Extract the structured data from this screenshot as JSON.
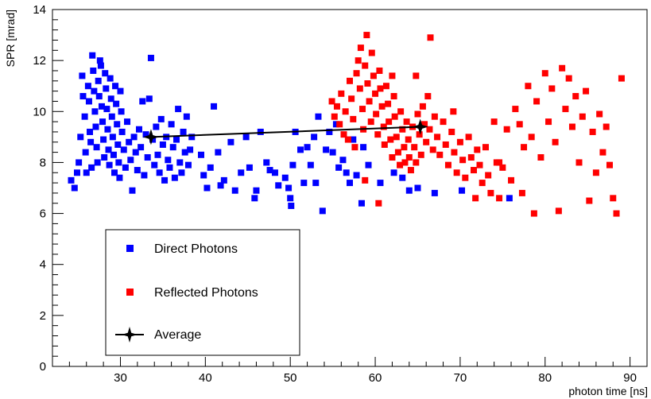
{
  "chart_data": {
    "type": "scatter",
    "xlabel": "photon time [ns]",
    "ylabel": "SPR [mrad]",
    "xlim": [
      22,
      92
    ],
    "ylim": [
      0,
      14
    ],
    "x_ticks": [
      30,
      40,
      50,
      60,
      70,
      80,
      90
    ],
    "y_ticks": [
      0,
      2,
      4,
      6,
      8,
      10,
      12,
      14
    ],
    "grid": false,
    "legend_placement": "bottom-left",
    "series": [
      {
        "name": "Direct Photons",
        "marker": "square",
        "color": "#0000ff",
        "points": [
          [
            24.2,
            7.3
          ],
          [
            24.6,
            7.0
          ],
          [
            24.9,
            7.6
          ],
          [
            25.1,
            8.0
          ],
          [
            25.3,
            9.0
          ],
          [
            25.5,
            11.4
          ],
          [
            25.6,
            10.6
          ],
          [
            25.8,
            9.8
          ],
          [
            25.9,
            8.4
          ],
          [
            26.0,
            7.6
          ],
          [
            26.2,
            11.0
          ],
          [
            26.3,
            10.4
          ],
          [
            26.4,
            9.2
          ],
          [
            26.5,
            8.8
          ],
          [
            26.6,
            7.8
          ],
          [
            26.7,
            12.2
          ],
          [
            26.8,
            11.6
          ],
          [
            26.9,
            10.8
          ],
          [
            27.0,
            10.0
          ],
          [
            27.1,
            9.4
          ],
          [
            27.2,
            8.6
          ],
          [
            27.3,
            8.0
          ],
          [
            27.4,
            11.2
          ],
          [
            27.5,
            10.6
          ],
          [
            27.6,
            12.0
          ],
          [
            27.7,
            11.8
          ],
          [
            27.8,
            10.2
          ],
          [
            27.9,
            9.6
          ],
          [
            28.0,
            8.9
          ],
          [
            28.1,
            8.2
          ],
          [
            28.2,
            11.5
          ],
          [
            28.3,
            10.9
          ],
          [
            28.4,
            10.1
          ],
          [
            28.5,
            9.3
          ],
          [
            28.6,
            8.5
          ],
          [
            28.7,
            7.9
          ],
          [
            28.8,
            11.3
          ],
          [
            28.9,
            10.5
          ],
          [
            29.0,
            9.8
          ],
          [
            29.1,
            9.0
          ],
          [
            29.2,
            8.3
          ],
          [
            29.3,
            7.6
          ],
          [
            29.4,
            11.0
          ],
          [
            29.5,
            10.3
          ],
          [
            29.6,
            9.5
          ],
          [
            29.7,
            8.7
          ],
          [
            29.8,
            8.0
          ],
          [
            29.9,
            7.4
          ],
          [
            30.0,
            10.8
          ],
          [
            30.1,
            10.0
          ],
          [
            30.2,
            9.2
          ],
          [
            30.4,
            8.5
          ],
          [
            30.6,
            7.8
          ],
          [
            30.8,
            9.6
          ],
          [
            31.0,
            8.8
          ],
          [
            31.2,
            8.1
          ],
          [
            31.4,
            6.9
          ],
          [
            31.6,
            9.0
          ],
          [
            31.8,
            8.4
          ],
          [
            32.0,
            7.7
          ],
          [
            32.2,
            9.3
          ],
          [
            32.4,
            8.6
          ],
          [
            32.6,
            10.4
          ],
          [
            32.8,
            7.5
          ],
          [
            33.0,
            9.1
          ],
          [
            33.2,
            8.2
          ],
          [
            33.4,
            10.5
          ],
          [
            33.6,
            12.1
          ],
          [
            33.8,
            8.9
          ],
          [
            34.0,
            7.9
          ],
          [
            34.2,
            9.4
          ],
          [
            34.4,
            8.3
          ],
          [
            34.6,
            7.6
          ],
          [
            34.8,
            9.7
          ],
          [
            35.0,
            8.7
          ],
          [
            35.2,
            7.3
          ],
          [
            35.4,
            9.0
          ],
          [
            35.6,
            8.1
          ],
          [
            35.8,
            7.8
          ],
          [
            36.0,
            9.5
          ],
          [
            36.2,
            8.6
          ],
          [
            36.4,
            7.4
          ],
          [
            36.6,
            8.9
          ],
          [
            36.8,
            10.1
          ],
          [
            37.0,
            8.0
          ],
          [
            37.2,
            7.6
          ],
          [
            37.4,
            9.2
          ],
          [
            37.6,
            8.4
          ],
          [
            37.8,
            9.8
          ],
          [
            38.0,
            7.9
          ],
          [
            38.2,
            8.5
          ],
          [
            38.4,
            9.0
          ],
          [
            39.5,
            8.3
          ],
          [
            39.8,
            7.5
          ],
          [
            40.2,
            7.0
          ],
          [
            40.6,
            7.8
          ],
          [
            41.0,
            10.2
          ],
          [
            41.5,
            8.4
          ],
          [
            41.8,
            7.1
          ],
          [
            42.2,
            7.3
          ],
          [
            43.0,
            8.8
          ],
          [
            43.5,
            6.9
          ],
          [
            44.2,
            7.6
          ],
          [
            44.8,
            9.0
          ],
          [
            45.2,
            7.8
          ],
          [
            45.8,
            6.6
          ],
          [
            46.0,
            6.9
          ],
          [
            46.5,
            9.2
          ],
          [
            47.2,
            8.0
          ],
          [
            47.6,
            7.7
          ],
          [
            48.2,
            7.6
          ],
          [
            48.6,
            7.1
          ],
          [
            49.4,
            7.4
          ],
          [
            49.8,
            7.0
          ],
          [
            50.0,
            6.6
          ],
          [
            50.1,
            6.3
          ],
          [
            50.3,
            7.9
          ],
          [
            50.6,
            9.2
          ],
          [
            51.2,
            8.5
          ],
          [
            51.6,
            7.2
          ],
          [
            52.0,
            8.6
          ],
          [
            52.4,
            7.9
          ],
          [
            52.8,
            9.0
          ],
          [
            53.0,
            7.2
          ],
          [
            53.3,
            9.8
          ],
          [
            53.8,
            6.1
          ],
          [
            54.2,
            8.5
          ],
          [
            54.6,
            9.2
          ],
          [
            55.0,
            8.4
          ],
          [
            55.4,
            9.5
          ],
          [
            55.7,
            7.8
          ],
          [
            56.2,
            8.1
          ],
          [
            56.6,
            7.6
          ],
          [
            57.0,
            7.2
          ],
          [
            57.4,
            8.9
          ],
          [
            57.8,
            7.5
          ],
          [
            58.4,
            6.4
          ],
          [
            58.6,
            8.6
          ],
          [
            59.2,
            7.9
          ],
          [
            60.6,
            7.2
          ],
          [
            62.2,
            7.6
          ],
          [
            63.2,
            7.4
          ],
          [
            64.0,
            6.9
          ],
          [
            65.0,
            7.0
          ],
          [
            67.0,
            6.8
          ],
          [
            70.2,
            6.9
          ],
          [
            75.8,
            6.6
          ]
        ]
      },
      {
        "name": "Reflected Photons",
        "marker": "square",
        "color": "#ff0000",
        "points": [
          [
            54.9,
            10.4
          ],
          [
            55.2,
            9.8
          ],
          [
            55.5,
            10.2
          ],
          [
            55.8,
            9.5
          ],
          [
            56.0,
            10.7
          ],
          [
            56.3,
            9.1
          ],
          [
            56.5,
            10.0
          ],
          [
            56.8,
            8.9
          ],
          [
            57.0,
            11.2
          ],
          [
            57.2,
            10.5
          ],
          [
            57.4,
            9.7
          ],
          [
            57.6,
            8.6
          ],
          [
            57.8,
            11.5
          ],
          [
            58.0,
            12.0
          ],
          [
            58.2,
            10.9
          ],
          [
            58.3,
            12.5
          ],
          [
            58.5,
            10.1
          ],
          [
            58.6,
            9.3
          ],
          [
            58.8,
            11.8
          ],
          [
            59.0,
            13.0
          ],
          [
            59.1,
            11.1
          ],
          [
            59.3,
            10.4
          ],
          [
            59.5,
            9.6
          ],
          [
            59.6,
            12.3
          ],
          [
            59.8,
            11.4
          ],
          [
            60.0,
            10.7
          ],
          [
            60.1,
            9.9
          ],
          [
            60.3,
            9.1
          ],
          [
            60.5,
            11.6
          ],
          [
            60.6,
            10.9
          ],
          [
            60.8,
            10.2
          ],
          [
            61.0,
            9.4
          ],
          [
            61.1,
            8.7
          ],
          [
            61.3,
            11.0
          ],
          [
            61.5,
            10.3
          ],
          [
            61.6,
            9.6
          ],
          [
            61.8,
            8.9
          ],
          [
            62.0,
            8.2
          ],
          [
            62.2,
            10.6
          ],
          [
            62.3,
            9.8
          ],
          [
            62.5,
            9.0
          ],
          [
            62.7,
            8.4
          ],
          [
            62.9,
            7.9
          ],
          [
            63.0,
            10.0
          ],
          [
            63.2,
            9.3
          ],
          [
            63.4,
            8.6
          ],
          [
            63.5,
            8.0
          ],
          [
            63.7,
            9.6
          ],
          [
            63.9,
            8.9
          ],
          [
            64.0,
            8.2
          ],
          [
            64.2,
            7.7
          ],
          [
            64.4,
            9.4
          ],
          [
            64.6,
            8.6
          ],
          [
            64.8,
            8.0
          ],
          [
            65.0,
            9.9
          ],
          [
            65.2,
            9.1
          ],
          [
            65.4,
            8.3
          ],
          [
            65.6,
            10.2
          ],
          [
            65.8,
            9.5
          ],
          [
            66.0,
            8.8
          ],
          [
            66.2,
            10.6
          ],
          [
            66.4,
            9.3
          ],
          [
            66.5,
            12.9
          ],
          [
            66.8,
            8.5
          ],
          [
            67.0,
            9.8
          ],
          [
            67.3,
            9.0
          ],
          [
            67.6,
            8.3
          ],
          [
            68.0,
            9.6
          ],
          [
            68.3,
            8.7
          ],
          [
            68.6,
            7.9
          ],
          [
            69.0,
            9.2
          ],
          [
            69.3,
            8.4
          ],
          [
            69.6,
            7.6
          ],
          [
            70.0,
            8.8
          ],
          [
            70.3,
            8.1
          ],
          [
            70.6,
            7.4
          ],
          [
            71.0,
            9.0
          ],
          [
            71.3,
            8.2
          ],
          [
            71.6,
            7.7
          ],
          [
            72.0,
            8.5
          ],
          [
            72.3,
            7.9
          ],
          [
            72.6,
            7.2
          ],
          [
            73.0,
            8.6
          ],
          [
            73.3,
            7.5
          ],
          [
            73.6,
            6.8
          ],
          [
            74.0,
            9.6
          ],
          [
            74.3,
            8.0
          ],
          [
            74.6,
            6.6
          ],
          [
            75.0,
            7.8
          ],
          [
            75.5,
            9.3
          ],
          [
            76.0,
            7.3
          ],
          [
            76.5,
            10.1
          ],
          [
            77.0,
            9.5
          ],
          [
            77.5,
            8.6
          ],
          [
            78.0,
            11.0
          ],
          [
            78.4,
            9.0
          ],
          [
            78.7,
            6.0
          ],
          [
            79.0,
            10.4
          ],
          [
            79.5,
            8.2
          ],
          [
            80.0,
            11.5
          ],
          [
            80.4,
            9.6
          ],
          [
            80.8,
            10.9
          ],
          [
            81.2,
            8.8
          ],
          [
            81.6,
            6.1
          ],
          [
            82.0,
            11.7
          ],
          [
            82.4,
            10.1
          ],
          [
            82.8,
            11.3
          ],
          [
            83.2,
            9.4
          ],
          [
            83.6,
            10.6
          ],
          [
            84.0,
            8.0
          ],
          [
            84.4,
            9.8
          ],
          [
            84.8,
            10.8
          ],
          [
            85.2,
            6.5
          ],
          [
            85.6,
            9.2
          ],
          [
            86.0,
            7.6
          ],
          [
            86.4,
            9.9
          ],
          [
            86.8,
            8.4
          ],
          [
            87.2,
            9.4
          ],
          [
            87.6,
            7.9
          ],
          [
            88.0,
            6.6
          ],
          [
            88.4,
            6.0
          ],
          [
            89.0,
            11.3
          ],
          [
            62.0,
            11.4
          ],
          [
            58.8,
            7.3
          ],
          [
            60.4,
            6.4
          ],
          [
            64.8,
            11.4
          ],
          [
            69.2,
            10.0
          ],
          [
            71.8,
            6.6
          ],
          [
            74.6,
            8.0
          ],
          [
            77.3,
            6.8
          ]
        ]
      },
      {
        "name": "Average",
        "marker": "star",
        "color": "#000000",
        "points": [
          [
            33.6,
            9.0
          ],
          [
            65.3,
            9.4
          ]
        ]
      }
    ]
  }
}
